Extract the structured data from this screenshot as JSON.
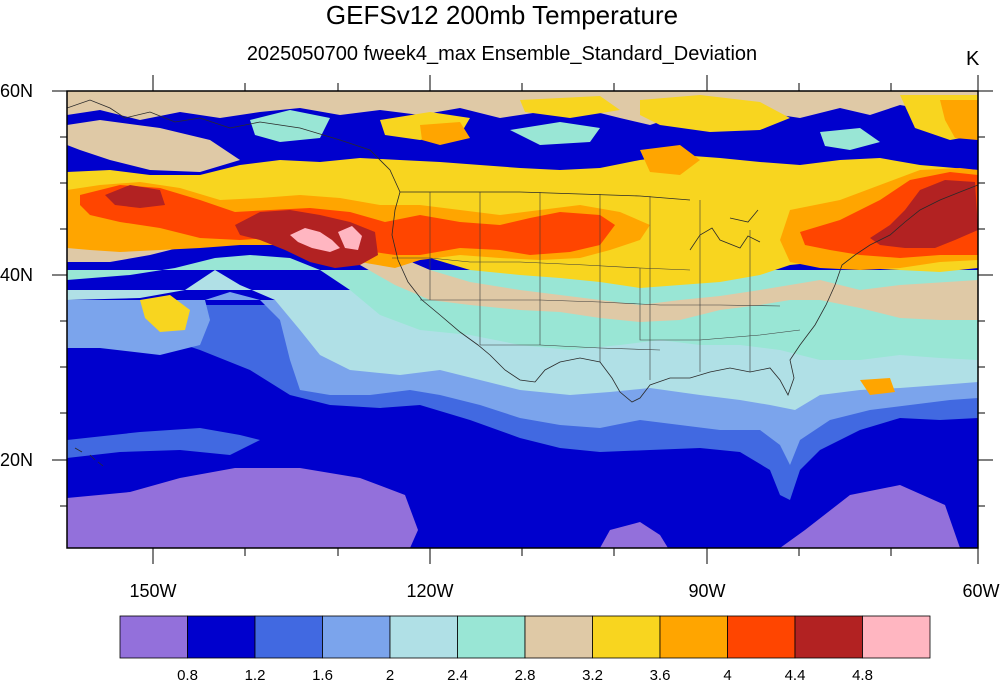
{
  "title": "GEFSv12 200mb Temperature",
  "subtitle": "2025050700 fweek4_max Ensemble_Standard_Deviation",
  "units": "K",
  "lat_labels": [
    "60N",
    "40N",
    "20N"
  ],
  "lon_labels": [
    "150W",
    "120W",
    "90W",
    "60W"
  ],
  "colorbar": {
    "colors": [
      "#9370db",
      "#0000cd",
      "#4169e1",
      "#7ba4ec",
      "#b0e0e6",
      "#99e6d5",
      "#dfc9a6",
      "#f8d51f",
      "#ffa500",
      "#ff4500",
      "#b22222",
      "#ffb6c1"
    ],
    "labels": [
      "0.8",
      "1.2",
      "1.6",
      "2",
      "2.4",
      "2.8",
      "3.2",
      "3.6",
      "4",
      "4.4",
      "4.8"
    ]
  },
  "map_extent": {
    "lon_min": -160,
    "lon_max": -60,
    "lat_min": 10,
    "lat_max": 60
  }
}
